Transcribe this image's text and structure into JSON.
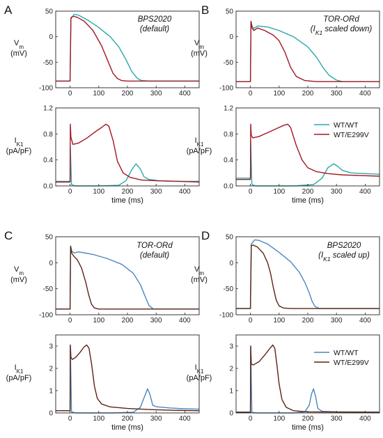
{
  "colors": {
    "wt_top": "#2aa8a8",
    "mut_top": "#a01822",
    "wt_bottom": "#4a86c0",
    "mut_bottom": "#5a2414"
  },
  "common": {
    "x_unit_label": "time (ms)",
    "vm_label_main": "V",
    "vm_label_sub": "m",
    "vm_unit": "(mV)",
    "ik1_label_main": "I",
    "ik1_label_sub": "K1",
    "ik1_unit": "(pA/pF)"
  },
  "panels": [
    {
      "letter": "A",
      "title_lines": [
        {
          "main": "BPS2020"
        },
        {
          "main": "(default)"
        }
      ]
    },
    {
      "letter": "B",
      "title_lines": [
        {
          "main": "TOR-ORd"
        },
        {
          "pre": "(I",
          "sub": "K1",
          "post": " scaled down)"
        }
      ]
    },
    {
      "letter": "C",
      "title_lines": [
        {
          "main": "TOR-ORd"
        },
        {
          "main": "(default)"
        }
      ]
    },
    {
      "letter": "D",
      "title_lines": [
        {
          "main": "BPS2020"
        },
        {
          "pre": "(I",
          "sub": "K1",
          "post": " scaled up)"
        }
      ]
    }
  ],
  "legends": [
    {
      "entries": [
        "WT/WT",
        "WT/E299V"
      ]
    },
    {
      "entries": [
        "WT/WT",
        "WT/E299V"
      ]
    }
  ],
  "chart_data": [
    {
      "id": "A-vm",
      "type": "line",
      "ylabel": "Vm (mV)",
      "xlabel": "",
      "xlim": [
        -50,
        450
      ],
      "ylim": [
        -100,
        50
      ],
      "xticks": [
        0,
        100,
        200,
        300,
        400
      ],
      "yticks": [
        -100,
        -50,
        0,
        50
      ],
      "series": [
        {
          "name": "WT/WT",
          "color_key": "wt_top",
          "x": [
            -50,
            -1,
            0,
            3,
            15,
            30,
            60,
            100,
            140,
            170,
            195,
            215,
            235,
            250,
            280,
            450
          ],
          "y": [
            -87,
            -87,
            -87,
            35,
            44,
            42,
            33,
            18,
            0,
            -20,
            -45,
            -68,
            -82,
            -86,
            -87,
            -87
          ]
        },
        {
          "name": "WT/E299V",
          "color_key": "mut_top",
          "x": [
            -50,
            -1,
            0,
            3,
            10,
            25,
            50,
            80,
            110,
            135,
            150,
            165,
            180,
            200,
            230,
            450
          ],
          "y": [
            -87,
            -87,
            -87,
            37,
            40,
            38,
            30,
            12,
            -18,
            -52,
            -72,
            -82,
            -86,
            -87,
            -87,
            -87
          ]
        }
      ]
    },
    {
      "id": "A-ik1",
      "type": "line",
      "ylabel": "IK1 (pA/pF)",
      "xlabel": "time (ms)",
      "xlim": [
        -50,
        450
      ],
      "ylim": [
        0,
        1.2
      ],
      "xticks": [
        0,
        100,
        200,
        300,
        400
      ],
      "yticks": [
        0.0,
        0.4,
        0.8,
        1.2
      ],
      "series": [
        {
          "name": "WT/WT",
          "color_key": "wt_top",
          "x": [
            -50,
            -1,
            0,
            1,
            5,
            20,
            100,
            170,
            195,
            215,
            230,
            245,
            258,
            275,
            310,
            380,
            450
          ],
          "y": [
            0.07,
            0.07,
            0.07,
            0.6,
            0.02,
            0.0,
            0.0,
            0.01,
            0.08,
            0.25,
            0.34,
            0.26,
            0.14,
            0.1,
            0.08,
            0.07,
            0.07
          ]
        },
        {
          "name": "WT/E299V",
          "color_key": "mut_top",
          "x": [
            -50,
            -1,
            0,
            1,
            3,
            10,
            30,
            60,
            90,
            110,
            125,
            135,
            150,
            165,
            185,
            210,
            250,
            300,
            380,
            450
          ],
          "y": [
            0.06,
            0.06,
            0.06,
            0.95,
            0.75,
            0.64,
            0.66,
            0.74,
            0.84,
            0.9,
            0.95,
            0.92,
            0.7,
            0.38,
            0.2,
            0.13,
            0.09,
            0.08,
            0.07,
            0.06
          ]
        }
      ]
    },
    {
      "id": "B-vm",
      "type": "line",
      "ylabel": "Vm (mV)",
      "xlabel": "",
      "xlim": [
        -50,
        450
      ],
      "ylim": [
        -100,
        50
      ],
      "xticks": [
        0,
        100,
        200,
        300,
        400
      ],
      "yticks": [
        -100,
        -50,
        0,
        50
      ],
      "series": [
        {
          "name": "WT/WT",
          "color_key": "wt_top",
          "x": [
            -50,
            -1,
            0,
            2,
            6,
            12,
            25,
            60,
            100,
            150,
            200,
            230,
            255,
            275,
            300,
            320,
            450
          ],
          "y": [
            -88,
            -88,
            -88,
            30,
            20,
            16,
            21,
            19,
            12,
            0,
            -20,
            -40,
            -62,
            -76,
            -85,
            -88,
            -88
          ]
        },
        {
          "name": "WT/E299V",
          "color_key": "mut_top",
          "x": [
            -50,
            -1,
            0,
            2,
            6,
            12,
            25,
            50,
            80,
            100,
            120,
            140,
            160,
            190,
            230,
            450
          ],
          "y": [
            -88,
            -88,
            -88,
            30,
            17,
            12,
            17,
            12,
            3,
            -8,
            -30,
            -60,
            -78,
            -86,
            -88,
            -88
          ]
        }
      ]
    },
    {
      "id": "B-ik1",
      "type": "line",
      "ylabel": "IK1 (pA/pF)",
      "xlabel": "time (ms)",
      "xlim": [
        -50,
        450
      ],
      "ylim": [
        0,
        1.2
      ],
      "xticks": [
        0,
        100,
        200,
        300,
        400
      ],
      "yticks": [
        0.0,
        0.4,
        0.8,
        1.2
      ],
      "series": [
        {
          "name": "WT/WT",
          "color_key": "wt_top",
          "x": [
            -50,
            -1,
            0,
            1,
            5,
            20,
            150,
            220,
            250,
            270,
            290,
            305,
            320,
            350,
            400,
            450
          ],
          "y": [
            0.12,
            0.12,
            0.12,
            0.7,
            0.02,
            0.0,
            0.0,
            0.02,
            0.12,
            0.28,
            0.34,
            0.3,
            0.24,
            0.2,
            0.19,
            0.18
          ]
        },
        {
          "name": "WT/E299V",
          "color_key": "mut_top",
          "x": [
            -50,
            -1,
            0,
            1,
            3,
            8,
            30,
            60,
            90,
            115,
            130,
            140,
            160,
            180,
            200,
            230,
            270,
            320,
            380,
            450
          ],
          "y": [
            0.1,
            0.1,
            0.1,
            0.95,
            0.78,
            0.74,
            0.76,
            0.82,
            0.88,
            0.93,
            0.95,
            0.9,
            0.62,
            0.4,
            0.28,
            0.22,
            0.19,
            0.17,
            0.16,
            0.15
          ]
        }
      ]
    },
    {
      "id": "C-vm",
      "type": "line",
      "ylabel": "Vm (mV)",
      "xlabel": "",
      "xlim": [
        -50,
        450
      ],
      "ylim": [
        -100,
        50
      ],
      "xticks": [
        0,
        100,
        200,
        300,
        400
      ],
      "yticks": [
        -100,
        -50,
        0,
        50
      ],
      "series": [
        {
          "name": "WT/WT",
          "color_key": "wt_bottom",
          "x": [
            -50,
            -1,
            0,
            2,
            6,
            14,
            30,
            80,
            130,
            180,
            220,
            245,
            262,
            275,
            290,
            450
          ],
          "y": [
            -89,
            -89,
            -89,
            32,
            22,
            19,
            21,
            16,
            8,
            -3,
            -20,
            -42,
            -65,
            -82,
            -89,
            -89
          ]
        },
        {
          "name": "WT/E299V",
          "color_key": "mut_bottom",
          "x": [
            -50,
            -1,
            0,
            2,
            6,
            14,
            25,
            40,
            55,
            65,
            75,
            85,
            100,
            130,
            450
          ],
          "y": [
            -89,
            -89,
            -89,
            32,
            18,
            12,
            6,
            -10,
            -38,
            -62,
            -80,
            -87,
            -89,
            -89,
            -89
          ]
        }
      ]
    },
    {
      "id": "C-ik1",
      "type": "line",
      "ylabel": "IK1 (pA/pF)",
      "xlabel": "time (ms)",
      "xlim": [
        -50,
        450
      ],
      "ylim": [
        0,
        3.5
      ],
      "xticks": [
        0,
        100,
        200,
        300,
        400
      ],
      "yticks": [
        0,
        1,
        2,
        3
      ],
      "series": [
        {
          "name": "WT/WT",
          "color_key": "wt_bottom",
          "x": [
            -50,
            -1,
            0,
            1,
            5,
            20,
            150,
            220,
            245,
            260,
            270,
            278,
            288,
            300,
            350,
            400,
            450
          ],
          "y": [
            0.1,
            0.1,
            0.1,
            3.0,
            0.05,
            0.0,
            0.0,
            0.03,
            0.25,
            0.75,
            1.08,
            0.85,
            0.35,
            0.28,
            0.22,
            0.19,
            0.17
          ]
        },
        {
          "name": "WT/E299V",
          "color_key": "mut_bottom",
          "x": [
            -50,
            -1,
            0,
            1,
            3,
            8,
            20,
            35,
            48,
            58,
            66,
            75,
            85,
            95,
            110,
            140,
            200,
            280,
            360,
            450
          ],
          "y": [
            0.1,
            0.1,
            0.1,
            3.05,
            2.5,
            2.4,
            2.5,
            2.72,
            2.95,
            3.05,
            2.9,
            2.2,
            1.2,
            0.65,
            0.4,
            0.27,
            0.2,
            0.15,
            0.12,
            0.1
          ]
        }
      ]
    },
    {
      "id": "D-vm",
      "type": "line",
      "ylabel": "Vm (mV)",
      "xlabel": "",
      "xlim": [
        -50,
        450
      ],
      "ylim": [
        -100,
        50
      ],
      "xticks": [
        0,
        100,
        200,
        300,
        400
      ],
      "yticks": [
        -100,
        -50,
        0,
        50
      ],
      "series": [
        {
          "name": "WT/WT",
          "color_key": "wt_bottom",
          "x": [
            -50,
            -1,
            0,
            3,
            15,
            30,
            60,
            100,
            140,
            170,
            190,
            205,
            215,
            225,
            240,
            450
          ],
          "y": [
            -88,
            -88,
            -88,
            36,
            44,
            43,
            36,
            20,
            2,
            -18,
            -38,
            -58,
            -74,
            -84,
            -88,
            -88
          ]
        },
        {
          "name": "WT/E299V",
          "color_key": "mut_bottom",
          "x": [
            -50,
            -1,
            0,
            3,
            10,
            25,
            45,
            60,
            70,
            80,
            90,
            100,
            115,
            140,
            450
          ],
          "y": [
            -88,
            -88,
            -88,
            33,
            34,
            30,
            18,
            0,
            -20,
            -48,
            -72,
            -83,
            -87,
            -88,
            -88
          ]
        }
      ]
    },
    {
      "id": "D-ik1",
      "type": "line",
      "ylabel": "IK1 (pA/pF)",
      "xlabel": "time (ms)",
      "xlim": [
        -50,
        450
      ],
      "ylim": [
        0,
        3.5
      ],
      "xticks": [
        0,
        100,
        200,
        300,
        400
      ],
      "yticks": [
        0,
        1,
        2,
        3
      ],
      "series": [
        {
          "name": "WT/WT",
          "color_key": "wt_bottom",
          "x": [
            -50,
            -1,
            0,
            1,
            5,
            20,
            150,
            190,
            205,
            213,
            220,
            227,
            235,
            250,
            300,
            450
          ],
          "y": [
            0.04,
            0.04,
            0.04,
            3.0,
            0.03,
            0.0,
            0.0,
            0.05,
            0.35,
            0.85,
            1.08,
            0.75,
            0.2,
            0.07,
            0.05,
            0.04
          ]
        },
        {
          "name": "WT/E299V",
          "color_key": "mut_bottom",
          "x": [
            -50,
            -1,
            0,
            1,
            3,
            10,
            30,
            50,
            65,
            78,
            85,
            92,
            100,
            110,
            125,
            150,
            200,
            300,
            450
          ],
          "y": [
            0.03,
            0.03,
            0.03,
            3.0,
            2.2,
            2.15,
            2.3,
            2.6,
            2.85,
            3.05,
            2.9,
            2.2,
            1.3,
            0.6,
            0.25,
            0.1,
            0.05,
            0.04,
            0.03
          ]
        }
      ]
    }
  ]
}
